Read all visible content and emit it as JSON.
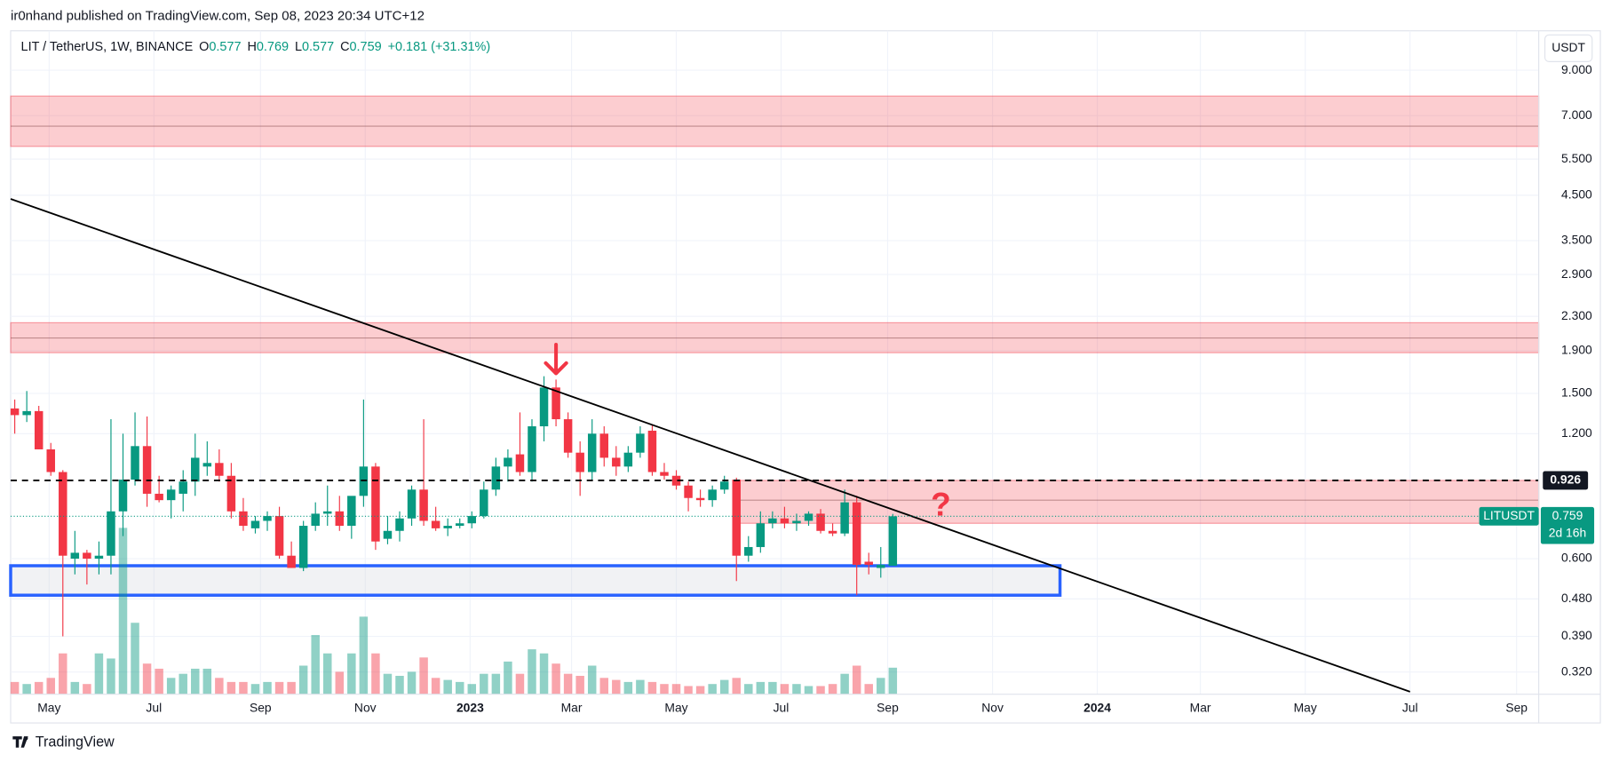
{
  "chart_data": {
    "type": "candlestick",
    "published": "ir0nhand published on TradingView.com, Sep 08, 2023 20:34 UTC+12",
    "title": "LIT / TetherUS, 1W, BINANCE",
    "legend": {
      "fields": [
        {
          "key": "O",
          "value": "0.577"
        },
        {
          "key": "H",
          "value": "0.769"
        },
        {
          "key": "L",
          "value": "0.577"
        },
        {
          "key": "C",
          "value": "0.759"
        }
      ],
      "change": "+0.181 (+31.31%)"
    },
    "currency": "USDT",
    "brand": "TradingView",
    "up_color": "#089981",
    "down_color": "#f23645",
    "log_scale": true,
    "grid": true,
    "x": [
      0,
      1,
      2,
      3,
      4,
      5,
      6,
      7,
      8,
      9,
      10,
      11,
      12,
      13,
      14,
      15,
      16,
      17,
      18,
      19,
      20,
      21,
      22,
      23,
      24,
      25,
      26,
      27,
      28,
      29,
      30,
      31,
      32,
      33,
      34,
      35,
      36,
      37,
      38,
      39,
      40,
      41,
      42,
      43,
      44,
      45,
      46,
      47,
      48,
      49,
      50,
      51,
      52,
      53,
      54,
      55,
      56,
      57,
      58,
      59,
      60,
      61,
      62,
      63,
      64,
      65,
      66,
      67,
      68,
      69,
      70,
      71,
      72,
      73
    ],
    "open": [
      1.38,
      1.33,
      1.36,
      1.1,
      0.97,
      0.6,
      0.62,
      0.6,
      0.61,
      0.78,
      0.93,
      1.12,
      0.86,
      0.83,
      0.86,
      0.92,
      1.0,
      1.02,
      0.95,
      0.78,
      0.71,
      0.74,
      0.76,
      0.61,
      0.57,
      0.72,
      0.77,
      0.78,
      0.72,
      0.85,
      1.0,
      0.67,
      0.7,
      0.75,
      0.88,
      0.74,
      0.71,
      0.72,
      0.73,
      0.76,
      0.88,
      1.0,
      1.07,
      0.97,
      1.25,
      1.55,
      1.3,
      1.08,
      0.97,
      1.2,
      1.05,
      1.0,
      1.08,
      1.22,
      0.97,
      0.95,
      0.9,
      0.84,
      0.83,
      0.88,
      0.93,
      0.61,
      0.64,
      0.73,
      0.75,
      0.73,
      0.74,
      0.77,
      0.7,
      0.69,
      0.82,
      0.59,
      0.57,
      0.577
    ],
    "high": [
      1.45,
      1.52,
      1.4,
      1.14,
      0.98,
      0.7,
      0.63,
      0.66,
      1.3,
      1.2,
      1.35,
      1.32,
      0.95,
      0.9,
      0.98,
      1.2,
      1.15,
      1.1,
      1.02,
      0.84,
      0.76,
      0.78,
      0.8,
      0.66,
      0.74,
      0.82,
      0.9,
      0.85,
      0.84,
      1.45,
      1.02,
      0.76,
      0.78,
      0.9,
      1.3,
      0.8,
      0.75,
      0.75,
      0.78,
      0.92,
      1.05,
      1.1,
      1.35,
      1.3,
      1.65,
      1.62,
      1.35,
      1.15,
      1.3,
      1.25,
      1.12,
      1.12,
      1.25,
      1.26,
      1.02,
      0.98,
      0.92,
      0.88,
      0.9,
      0.95,
      0.94,
      0.68,
      0.78,
      0.78,
      0.8,
      0.77,
      0.78,
      0.79,
      0.73,
      0.88,
      0.85,
      0.62,
      0.64,
      0.769
    ],
    "low": [
      1.2,
      1.28,
      1.1,
      0.95,
      0.39,
      0.55,
      0.52,
      0.55,
      0.55,
      0.68,
      0.9,
      0.8,
      0.82,
      0.75,
      0.78,
      0.85,
      0.95,
      0.92,
      0.75,
      0.7,
      0.69,
      0.7,
      0.6,
      0.57,
      0.56,
      0.7,
      0.72,
      0.7,
      0.67,
      0.8,
      0.63,
      0.65,
      0.66,
      0.72,
      0.72,
      0.7,
      0.68,
      0.71,
      0.71,
      0.75,
      0.85,
      0.92,
      0.95,
      0.92,
      1.15,
      1.25,
      1.05,
      0.85,
      0.93,
      1.0,
      0.95,
      0.97,
      1.05,
      0.95,
      0.93,
      0.88,
      0.78,
      0.8,
      0.8,
      0.86,
      0.53,
      0.59,
      0.62,
      0.71,
      0.71,
      0.7,
      0.72,
      0.69,
      0.68,
      0.68,
      0.49,
      0.55,
      0.54,
      0.577
    ],
    "close": [
      1.33,
      1.36,
      1.1,
      0.97,
      0.61,
      0.62,
      0.6,
      0.61,
      0.78,
      0.93,
      1.12,
      0.86,
      0.83,
      0.88,
      0.92,
      1.05,
      1.02,
      0.95,
      0.78,
      0.72,
      0.74,
      0.76,
      0.61,
      0.57,
      0.72,
      0.77,
      0.78,
      0.72,
      0.85,
      1.0,
      0.66,
      0.7,
      0.75,
      0.88,
      0.74,
      0.71,
      0.72,
      0.73,
      0.76,
      0.88,
      1.0,
      1.05,
      0.97,
      1.25,
      1.55,
      1.3,
      1.08,
      0.97,
      1.2,
      1.05,
      1.0,
      1.08,
      1.2,
      0.97,
      0.95,
      0.9,
      0.84,
      0.83,
      0.88,
      0.92,
      0.61,
      0.64,
      0.73,
      0.75,
      0.73,
      0.74,
      0.77,
      0.7,
      0.69,
      0.82,
      0.58,
      0.58,
      0.58,
      0.759
    ],
    "volume": [
      12,
      10,
      12,
      16,
      40,
      12,
      10,
      40,
      35,
      163,
      70,
      30,
      25,
      16,
      20,
      25,
      25,
      16,
      12,
      12,
      10,
      12,
      12,
      12,
      28,
      58,
      40,
      22,
      40,
      76,
      40,
      20,
      18,
      22,
      36,
      16,
      14,
      12,
      10,
      20,
      20,
      32,
      20,
      44,
      40,
      30,
      20,
      18,
      28,
      16,
      14,
      12,
      14,
      12,
      10,
      10,
      8,
      8,
      10,
      14,
      16,
      10,
      12,
      12,
      10,
      10,
      8,
      8,
      10,
      20,
      28,
      10,
      16,
      26
    ],
    "vlim": [
      0,
      650
    ],
    "xlim": [
      -0.34,
      126.7
    ],
    "xticks": [
      {
        "value": 2.86,
        "label": "May"
      },
      {
        "value": 11.57,
        "label": "Jul"
      },
      {
        "value": 20.43,
        "label": "Sep"
      },
      {
        "value": 29.14,
        "label": "Nov"
      },
      {
        "value": 37.86,
        "label": "2023"
      },
      {
        "value": 46.29,
        "label": "Mar"
      },
      {
        "value": 55,
        "label": "May"
      },
      {
        "value": 63.71,
        "label": "Jul"
      },
      {
        "value": 72.57,
        "label": "Sep"
      },
      {
        "value": 81.29,
        "label": "Nov"
      },
      {
        "value": 90,
        "label": "2024"
      },
      {
        "value": 98.57,
        "label": "Mar"
      },
      {
        "value": 107.29,
        "label": "May"
      },
      {
        "value": 116,
        "label": "Jul"
      },
      {
        "value": 124.86,
        "label": "Sep"
      }
    ],
    "ylim": [
      0.283,
      11.2
    ],
    "yticks": [
      {
        "value": 0.32,
        "label": "0.320"
      },
      {
        "value": 0.39,
        "label": "0.390"
      },
      {
        "value": 0.48,
        "label": "0.480"
      },
      {
        "value": 0.6,
        "label": "0.600"
      },
      {
        "value": 1.2,
        "label": "1.200"
      },
      {
        "value": 1.5,
        "label": "1.500"
      },
      {
        "value": 1.9,
        "label": "1.900"
      },
      {
        "value": 2.3,
        "label": "2.300"
      },
      {
        "value": 2.9,
        "label": "2.900"
      },
      {
        "value": 3.5,
        "label": "3.500"
      },
      {
        "value": 4.5,
        "label": "4.500"
      },
      {
        "value": 5.5,
        "label": "5.500"
      },
      {
        "value": 7,
        "label": "7.000"
      },
      {
        "value": 9,
        "label": "9.000"
      }
    ],
    "resistance_zones": [
      {
        "top": 7.8,
        "mid": 6.6,
        "bottom": 5.9
      },
      {
        "top": 2.22,
        "mid": 2.04,
        "bottom": 1.88
      },
      {
        "top": 0.926,
        "mid": 0.83,
        "bottom": 0.73,
        "start": 60
      }
    ],
    "support_box": {
      "top": 0.577,
      "bottom": 0.49,
      "end": 86.9
    },
    "trendline": {
      "x": [
        -0.34,
        116
      ],
      "y": [
        4.41,
        0.287
      ]
    },
    "level_line": 0.926,
    "last_price": 0.759,
    "symbol": "LITUSDT",
    "countdown": "2d 16h",
    "arrow_at": 45,
    "question": {
      "x": 77,
      "y": 0.8,
      "text": "?"
    }
  }
}
